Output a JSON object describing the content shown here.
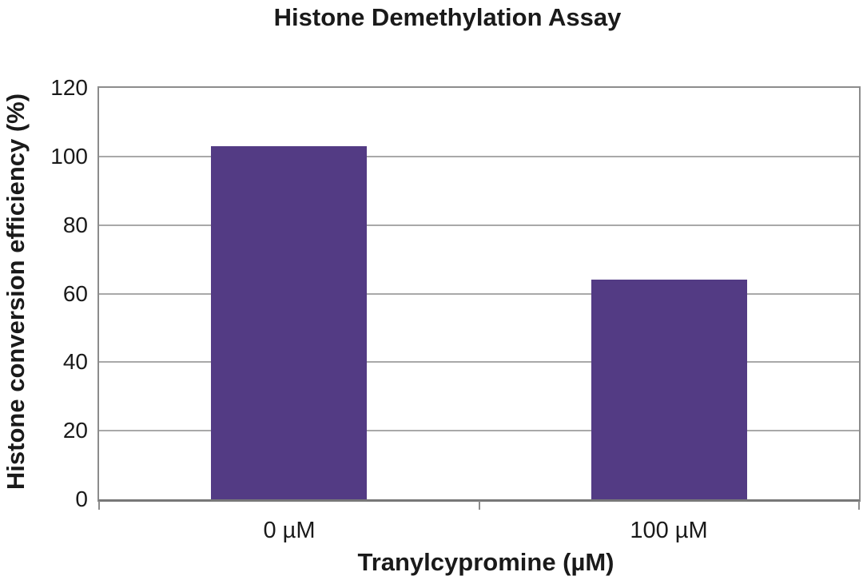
{
  "chart_data": {
    "type": "bar",
    "title": "Histone Demethylation Assay",
    "xlabel": "Tranylcypromine (µM)",
    "ylabel": "Histone conversion efficiency (%)",
    "categories": [
      "0 µM",
      "100 µM"
    ],
    "values": [
      103,
      64
    ],
    "ylim": [
      0,
      120
    ],
    "yticks": [
      0,
      20,
      40,
      60,
      80,
      100,
      120
    ],
    "grid": "horizontal",
    "legend": "none",
    "colors": {
      "bar": "#533b84",
      "gridline": "#a9a9a9",
      "axis": "#8c8c8c",
      "axis_bottom": "#787878",
      "text": "#1a1a1a",
      "background": "#ffffff"
    }
  }
}
